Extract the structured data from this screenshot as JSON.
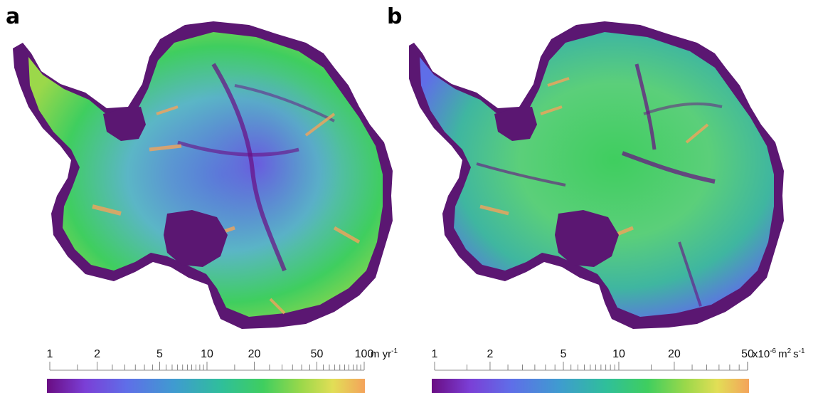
{
  "panels": [
    {
      "letter": "a",
      "colorbar": {
        "min": 1,
        "max": 100,
        "scale": "log",
        "tick_labels": [
          "1",
          "2",
          "5",
          "10",
          "20",
          "50",
          "100"
        ],
        "tick_values": [
          1,
          2,
          5,
          10,
          20,
          50,
          100
        ],
        "unit_main": "m yr",
        "unit_exp": "-1"
      }
    },
    {
      "letter": "b",
      "colorbar": {
        "min": 1,
        "max": 50,
        "scale": "log",
        "tick_labels": [
          "1",
          "2",
          "5",
          "10",
          "20",
          "50"
        ],
        "tick_values": [
          1,
          2,
          5,
          10,
          20,
          50
        ],
        "unit_prefix": "x10",
        "unit_prefix_exp": "-6",
        "unit_m": "m",
        "unit_m_exp": "2",
        "unit_s": "s",
        "unit_s_exp": "-1"
      }
    }
  ],
  "colors": {
    "background_ice": "#5b1772",
    "colormap": [
      "#6a0d83",
      "#7b3fd6",
      "#5f6ee8",
      "#3f9bd0",
      "#2fbf9a",
      "#3fce5f",
      "#9bd84a",
      "#e2de56",
      "#f4a35b"
    ]
  }
}
